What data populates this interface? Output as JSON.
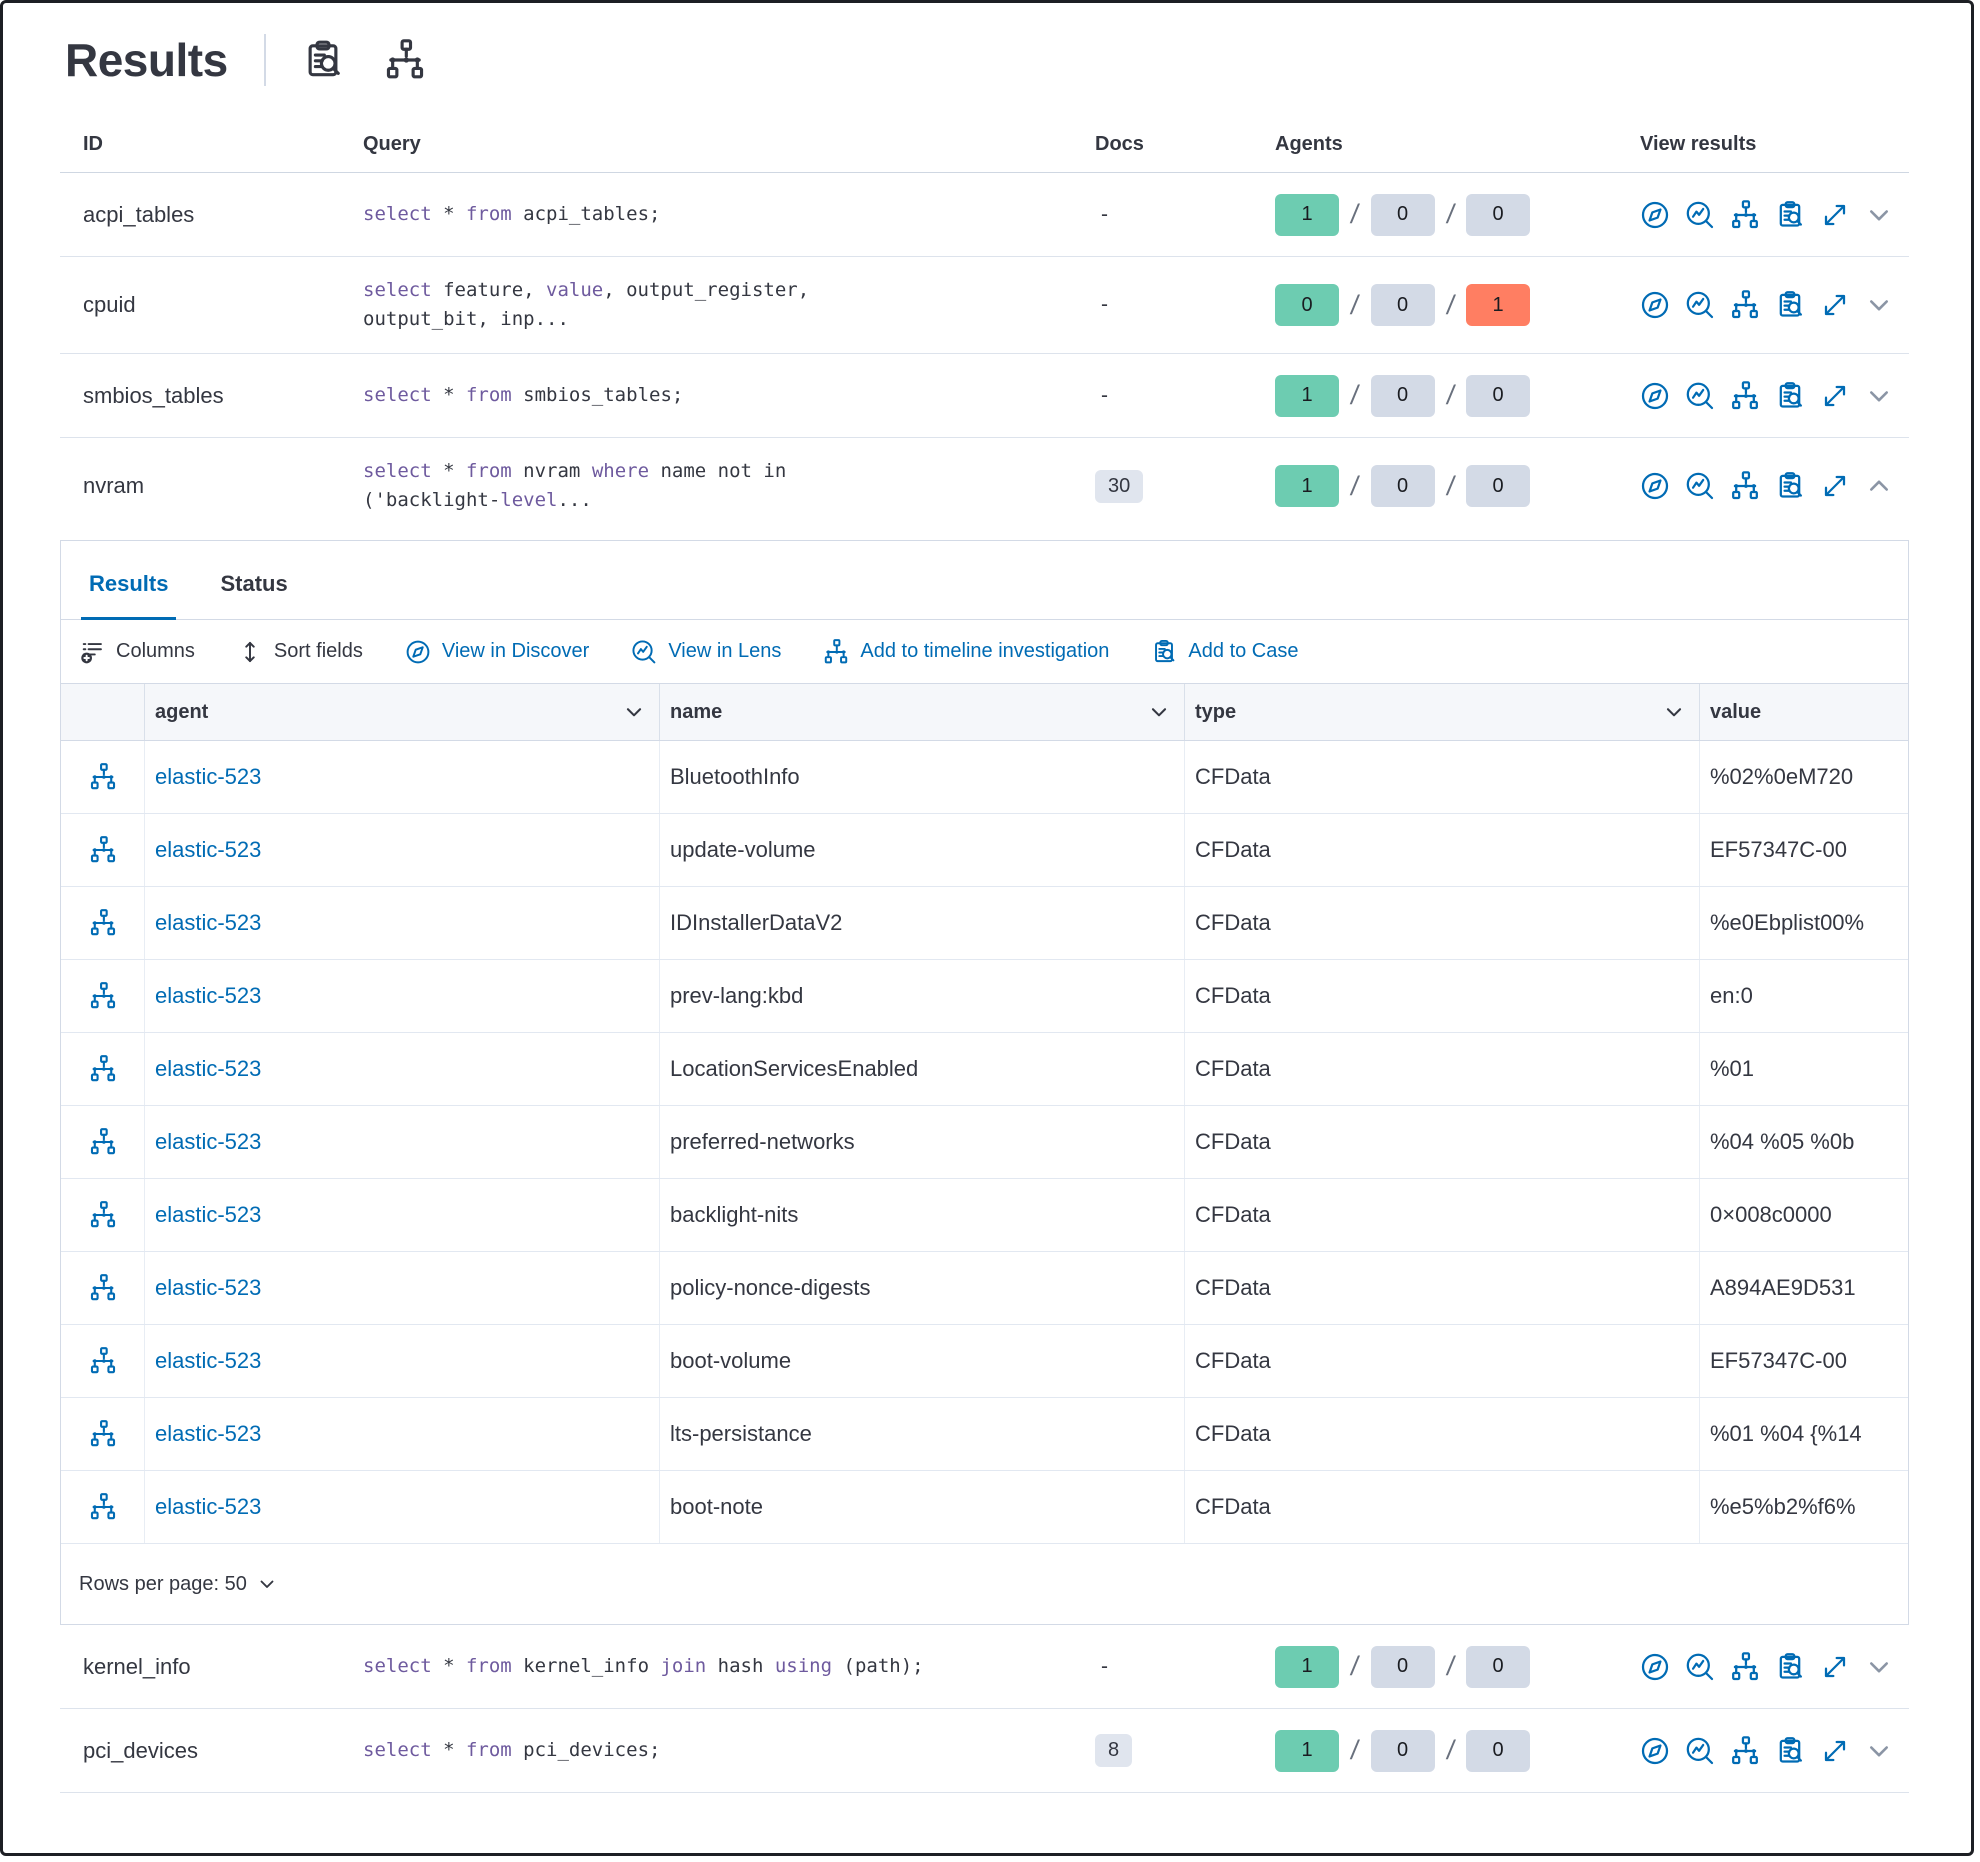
{
  "page": {
    "title": "Results"
  },
  "colors": {
    "green": "#6dccb1",
    "gray": "#d3dae6",
    "red": "#ff7e62",
    "link": "#006bb4",
    "keyword": "#6e5a9e"
  },
  "outer": {
    "columns": [
      "ID",
      "Query",
      "Docs",
      "Agents",
      "View results"
    ],
    "rows_top": [
      {
        "id": "acpi_tables",
        "query_lines": [
          [
            [
              "select",
              1
            ],
            [
              " * ",
              0
            ],
            [
              "from",
              1
            ],
            [
              " acpi_tables;",
              0
            ]
          ]
        ],
        "docs": "-",
        "docs_badge": false,
        "agents": [
          [
            "1",
            "green"
          ],
          [
            "0",
            "gray"
          ],
          [
            "0",
            "gray"
          ]
        ],
        "expanded": false
      },
      {
        "id": "cpuid",
        "query_lines": [
          [
            [
              "select",
              1
            ],
            [
              " feature, ",
              0
            ],
            [
              "value",
              1
            ],
            [
              ", output_register,",
              0
            ]
          ],
          [
            [
              "output_bit, inp...",
              0
            ]
          ]
        ],
        "docs": "-",
        "docs_badge": false,
        "agents": [
          [
            "0",
            "green"
          ],
          [
            "0",
            "gray"
          ],
          [
            "1",
            "red"
          ]
        ],
        "expanded": false
      },
      {
        "id": "smbios_tables",
        "query_lines": [
          [
            [
              "select",
              1
            ],
            [
              " * ",
              0
            ],
            [
              "from",
              1
            ],
            [
              " smbios_tables;",
              0
            ]
          ]
        ],
        "docs": "-",
        "docs_badge": false,
        "agents": [
          [
            "1",
            "green"
          ],
          [
            "0",
            "gray"
          ],
          [
            "0",
            "gray"
          ]
        ],
        "expanded": false
      },
      {
        "id": "nvram",
        "query_lines": [
          [
            [
              "select",
              1
            ],
            [
              " * ",
              0
            ],
            [
              "from",
              1
            ],
            [
              " nvram ",
              0
            ],
            [
              "where",
              1
            ],
            [
              " name not in",
              0
            ]
          ],
          [
            [
              "('backlight-",
              0
            ],
            [
              "level",
              1
            ],
            [
              "...",
              0
            ]
          ]
        ],
        "docs": "30",
        "docs_badge": true,
        "agents": [
          [
            "1",
            "green"
          ],
          [
            "0",
            "gray"
          ],
          [
            "0",
            "gray"
          ]
        ],
        "expanded": true
      }
    ],
    "rows_bottom": [
      {
        "id": "kernel_info",
        "query_lines": [
          [
            [
              "select",
              1
            ],
            [
              " * ",
              0
            ],
            [
              "from",
              1
            ],
            [
              " kernel_info ",
              0
            ],
            [
              "join",
              1
            ],
            [
              " hash ",
              0
            ],
            [
              "using",
              1
            ],
            [
              " (path);",
              0
            ]
          ]
        ],
        "docs": "-",
        "docs_badge": false,
        "agents": [
          [
            "1",
            "green"
          ],
          [
            "0",
            "gray"
          ],
          [
            "0",
            "gray"
          ]
        ],
        "expanded": false
      },
      {
        "id": "pci_devices",
        "query_lines": [
          [
            [
              "select",
              1
            ],
            [
              " * ",
              0
            ],
            [
              "from",
              1
            ],
            [
              " pci_devices;",
              0
            ]
          ]
        ],
        "docs": "8",
        "docs_badge": true,
        "agents": [
          [
            "1",
            "green"
          ],
          [
            "0",
            "gray"
          ],
          [
            "0",
            "gray"
          ]
        ],
        "expanded": false
      }
    ]
  },
  "panel": {
    "tabs": [
      {
        "label": "Results",
        "active": true
      },
      {
        "label": "Status",
        "active": false
      }
    ],
    "toolbar": [
      {
        "label": "Columns"
      },
      {
        "label": "Sort fields"
      },
      {
        "label": "View in Discover"
      },
      {
        "label": "View in Lens"
      },
      {
        "label": "Add to timeline investigation"
      },
      {
        "label": "Add to Case"
      }
    ],
    "table": {
      "columns": [
        "agent",
        "name",
        "type",
        "value"
      ],
      "rows": [
        {
          "agent": "elastic-523",
          "name": "BluetoothInfo",
          "type": "CFData",
          "value": "%02%0eM720"
        },
        {
          "agent": "elastic-523",
          "name": "update-volume",
          "type": "CFData",
          "value": "EF57347C-00"
        },
        {
          "agent": "elastic-523",
          "name": "IDInstallerDataV2",
          "type": "CFData",
          "value": "%e0Ebplist00%"
        },
        {
          "agent": "elastic-523",
          "name": "prev-lang:kbd",
          "type": "CFData",
          "value": "en:0"
        },
        {
          "agent": "elastic-523",
          "name": "LocationServicesEnabled",
          "type": "CFData",
          "value": "%01"
        },
        {
          "agent": "elastic-523",
          "name": "preferred-networks",
          "type": "CFData",
          "value": "%04 %05 %0b"
        },
        {
          "agent": "elastic-523",
          "name": "backlight-nits",
          "type": "CFData",
          "value": "0×008c0000"
        },
        {
          "agent": "elastic-523",
          "name": "policy-nonce-digests",
          "type": "CFData",
          "value": "A894AE9D531"
        },
        {
          "agent": "elastic-523",
          "name": "boot-volume",
          "type": "CFData",
          "value": "EF57347C-00"
        },
        {
          "agent": "elastic-523",
          "name": "lts-persistance",
          "type": "CFData",
          "value": "%01 %04 {%14"
        },
        {
          "agent": "elastic-523",
          "name": "boot-note",
          "type": "CFData",
          "value": "%e5%b2%f6%"
        }
      ]
    },
    "pagination": {
      "label": "Rows per page: 50"
    }
  }
}
